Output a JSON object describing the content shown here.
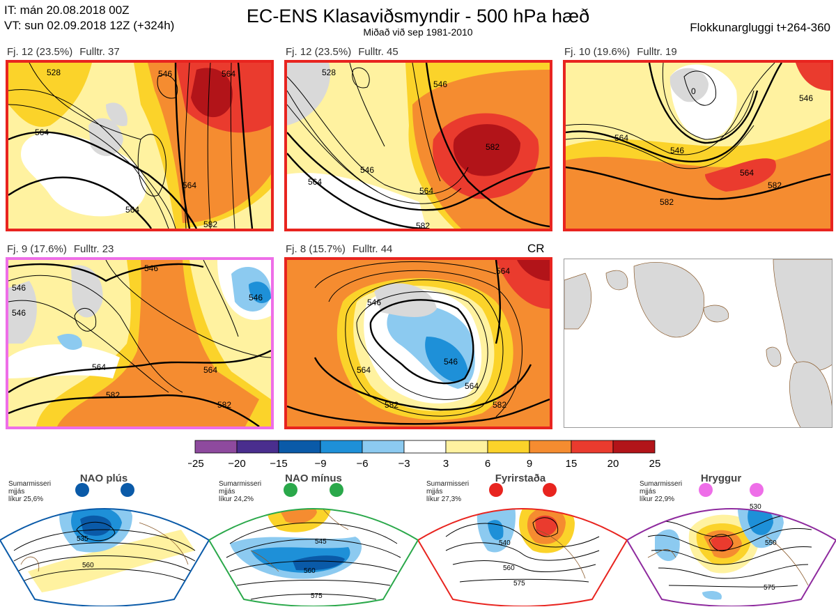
{
  "header": {
    "it_line": "IT: mán 20.08.2018 00Z",
    "vt_line": "VT: sun 02.09.2018 12Z  (+324h)",
    "title": "EC-ENS Klasaviðsmyndir - 500 hPa hæð",
    "subtitle": "Miðað við sep 1981-2010",
    "window": "Flokkunargluggi t+264-360"
  },
  "colors": {
    "panel_frame_red": "#e8241f",
    "panel_frame_pink": "#ee6ee8",
    "land_grey": "#d9d9d9",
    "coast_brown": "#8a5a2b",
    "nao_plus": "#0a5aa8",
    "nao_minus": "#2aa84a",
    "blocking": "#e8241f",
    "ridge": "#ee6ee8"
  },
  "panels": [
    {
      "cluster": "Fj. 12 (23.5%)",
      "members": "Fulltr. 37",
      "frame": "red",
      "contours": [
        "564",
        "564",
        "564",
        "564",
        "546",
        "528",
        "582"
      ]
    },
    {
      "cluster": "Fj. 12 (23.5%)",
      "members": "Fulltr. 45",
      "frame": "red",
      "contours": [
        "546",
        "564",
        "564",
        "582",
        "546",
        "528",
        "582"
      ]
    },
    {
      "cluster": "Fj. 10 (19.6%)",
      "members": "Fulltr. 19",
      "frame": "red",
      "contours": [
        "564",
        "546",
        "564",
        "582",
        "582",
        "546",
        "0"
      ]
    },
    {
      "cluster": "Fj. 9 (17.6%)",
      "members": "Fulltr. 23",
      "frame": "pink",
      "contours": [
        "546",
        "546",
        "564",
        "564",
        "582",
        "582",
        "546",
        "546"
      ]
    },
    {
      "cluster": "Fj. 8 (15.7%)",
      "members": "Fulltr. 44",
      "frame": "red",
      "contours": [
        "546",
        "564",
        "546",
        "564",
        "582",
        "582",
        "564"
      ],
      "badge": "CR"
    }
  ],
  "chart_data": {
    "type": "heatmap",
    "title": "EC-ENS Klasaviðsmyndir - 500 hPa hæð",
    "colorbar": {
      "ticks": [
        "−25",
        "−20",
        "−15",
        "−9",
        "−6",
        "−3",
        "3",
        "6",
        "9",
        "15",
        "20",
        "25"
      ],
      "colors": [
        "#8e4a9e",
        "#4a2e8e",
        "#0a5aa8",
        "#1e90d8",
        "#8ccaf0",
        "#ffffff",
        "#fff2a0",
        "#fbd32a",
        "#f58c30",
        "#ea3b2e",
        "#b21419"
      ]
    }
  },
  "regimes": [
    {
      "name": "NAO plús",
      "season": "Sumarmisseri",
      "metric": "mjjás",
      "prob": "líkur 25,6%",
      "color": "#0a5aa8",
      "contours": [
        "535",
        "560"
      ]
    },
    {
      "name": "NAO mínus",
      "season": "Sumarmisseri",
      "metric": "mjjás",
      "prob": "líkur 24,2%",
      "color": "#2aa84a",
      "contours": [
        "545",
        "560",
        "575"
      ]
    },
    {
      "name": "Fyrirstaða",
      "season": "Sumarmisseri",
      "metric": "mjjás",
      "prob": "líkur 27,3%",
      "color": "#e8241f",
      "contours": [
        "540",
        "560",
        "575"
      ]
    },
    {
      "name": "Hryggur",
      "season": "Sumarmisseri",
      "metric": "mjjás",
      "prob": "líkur 22,9%",
      "color": "#ee6ee8",
      "contours": [
        "530",
        "550",
        "575"
      ]
    }
  ]
}
